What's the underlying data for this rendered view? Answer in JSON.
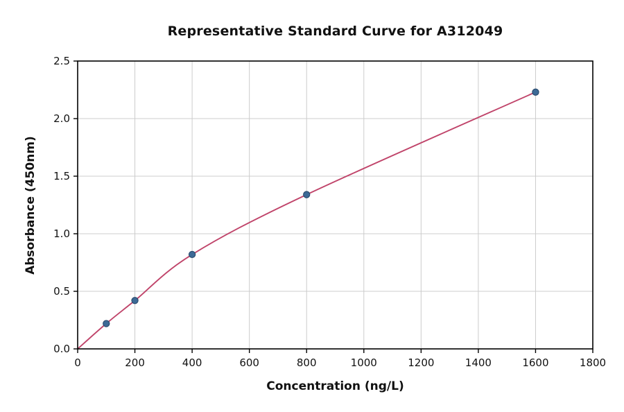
{
  "figure": {
    "background": "#ffffff"
  },
  "chart_data": {
    "type": "scatter",
    "title": "Representative Standard Curve for A312049",
    "xlabel": "Concentration (ng/L)",
    "ylabel": "Absorbance (450nm)",
    "series": [
      {
        "name": "standard-points",
        "x": [
          100,
          200,
          400,
          800,
          1600
        ],
        "y": [
          0.22,
          0.42,
          0.82,
          1.34,
          2.23
        ]
      }
    ],
    "fit_curve": {
      "x": [
        0,
        100,
        200,
        400,
        800,
        1600
      ],
      "y": [
        0.0,
        0.22,
        0.42,
        0.82,
        1.34,
        2.23
      ]
    },
    "xlim": [
      0,
      1800
    ],
    "ylim": [
      0,
      2.5
    ],
    "xticks": [
      0,
      200,
      400,
      600,
      800,
      1000,
      1200,
      1400,
      1600,
      1800
    ],
    "xtick_labels": [
      "0",
      "200",
      "400",
      "600",
      "800",
      "1000",
      "1200",
      "1400",
      "1600",
      "1800"
    ],
    "yticks": [
      0,
      0.5,
      1.0,
      1.5,
      2.0,
      2.5
    ],
    "ytick_labels": [
      "0.0",
      "0.5",
      "1.0",
      "1.5",
      "2.0",
      "2.5"
    ],
    "grid": true,
    "legend_position": "none",
    "colors": {
      "point_fill": "#3d6a96",
      "point_edge": "#28496b",
      "curve": "#c0446a",
      "grid": "#cccccc",
      "axis": "#000000",
      "text": "#111111"
    }
  }
}
